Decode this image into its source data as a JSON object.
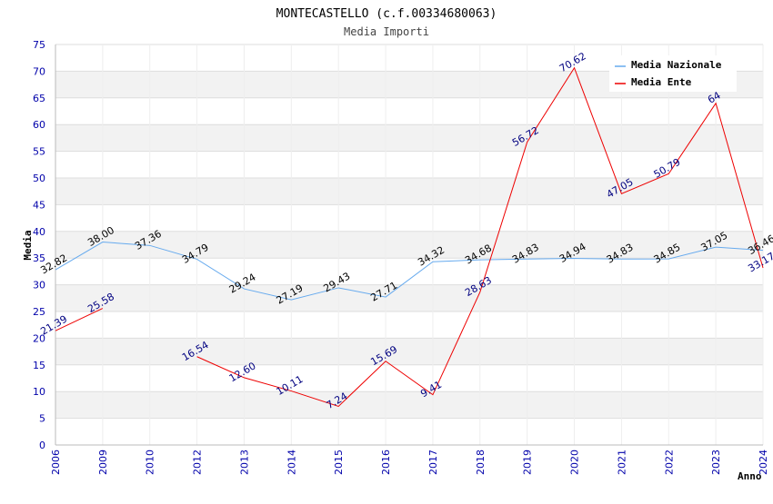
{
  "chart_data": {
    "type": "line",
    "title": "MONTECASTELLO (c.f.00334680063)",
    "subtitle": "Media Importi",
    "xlabel": "Anno",
    "ylabel": "Media",
    "ylim": [
      0,
      75
    ],
    "ytick_step": 5,
    "categories": [
      "2006",
      "2009",
      "2010",
      "2012",
      "2013",
      "2014",
      "2015",
      "2016",
      "2017",
      "2018",
      "2019",
      "2020",
      "2021",
      "2022",
      "2023",
      "2024"
    ],
    "series": [
      {
        "name": "Media Nazionale",
        "color": "#66aaee",
        "values": [
          32.82,
          38.0,
          37.36,
          34.79,
          29.24,
          27.19,
          29.43,
          27.71,
          34.32,
          34.68,
          34.83,
          34.94,
          34.83,
          34.85,
          37.05,
          36.46
        ],
        "labels": [
          "32.82",
          "38.00",
          "37.36",
          "34.79",
          "29.24",
          "27.19",
          "29.43",
          "27.71",
          "34.32",
          "34.68",
          "34.83",
          "34.94",
          "34.83",
          "34.85",
          "37.05",
          "36.46"
        ]
      },
      {
        "name": "Media Ente",
        "color": "#ee0000",
        "values": [
          21.39,
          25.58,
          null,
          16.54,
          12.6,
          10.11,
          7.24,
          15.69,
          9.41,
          28.63,
          56.72,
          70.62,
          47.05,
          50.79,
          64.0,
          33.17
        ],
        "labels": [
          "21.39",
          "25.58",
          null,
          "16.54",
          "12.60",
          "10.11",
          "7.24",
          "15.69",
          "9.41",
          "28.63",
          "56.72",
          "70.62",
          "47.05",
          "50.79",
          "64",
          "33.17"
        ]
      }
    ],
    "legend_position": "top-right",
    "grid": true
  }
}
